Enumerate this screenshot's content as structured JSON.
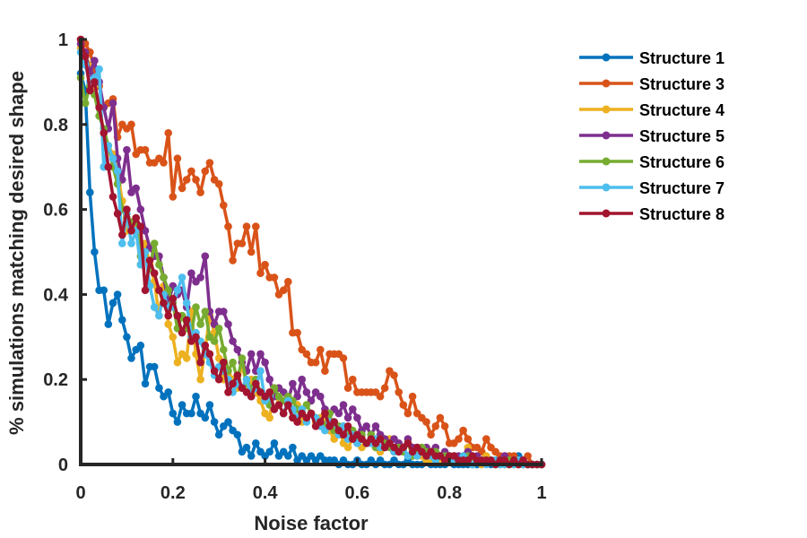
{
  "chart_data": {
    "type": "line",
    "title": "",
    "xlabel": "Noise factor",
    "ylabel": "% simulations matching desired shape",
    "xlim": [
      0,
      1
    ],
    "ylim": [
      0,
      1
    ],
    "xticks": [
      0,
      0.2,
      0.4,
      0.6,
      0.8,
      1
    ],
    "yticks": [
      0,
      0.2,
      0.4,
      0.6,
      0.8,
      1
    ],
    "xtick_labels": [
      "0",
      "0.2",
      "0.4",
      "0.6",
      "0.8",
      "1"
    ],
    "ytick_labels": [
      "0",
      "0.2",
      "0.4",
      "0.6",
      "0.8",
      "1"
    ],
    "grid": false,
    "legend_position": "top-right outside",
    "x": [
      0,
      0.01,
      0.02,
      0.03,
      0.04,
      0.05,
      0.06,
      0.07,
      0.08,
      0.09,
      0.1,
      0.11,
      0.12,
      0.13,
      0.14,
      0.15,
      0.16,
      0.17,
      0.18,
      0.19,
      0.2,
      0.21,
      0.22,
      0.23,
      0.24,
      0.25,
      0.26,
      0.27,
      0.28,
      0.29,
      0.3,
      0.31,
      0.32,
      0.33,
      0.34,
      0.35,
      0.36,
      0.37,
      0.38,
      0.39,
      0.4,
      0.41,
      0.42,
      0.43,
      0.44,
      0.45,
      0.46,
      0.47,
      0.48,
      0.49,
      0.5,
      0.51,
      0.52,
      0.53,
      0.54,
      0.55,
      0.56,
      0.57,
      0.58,
      0.59,
      0.6,
      0.61,
      0.62,
      0.63,
      0.64,
      0.65,
      0.66,
      0.67,
      0.68,
      0.69,
      0.7,
      0.71,
      0.72,
      0.73,
      0.74,
      0.75,
      0.76,
      0.77,
      0.78,
      0.79,
      0.8,
      0.81,
      0.82,
      0.83,
      0.84,
      0.85,
      0.86,
      0.87,
      0.88,
      0.89,
      0.9,
      0.91,
      0.92,
      0.93,
      0.94,
      0.95,
      0.96,
      0.97,
      0.98,
      0.99,
      1
    ],
    "series": [
      {
        "name": "Structure 1",
        "color": "#0072BD",
        "values": [
          0.92,
          0.88,
          0.64,
          0.5,
          0.41,
          0.41,
          0.33,
          0.38,
          0.4,
          0.34,
          0.3,
          0.25,
          0.27,
          0.28,
          0.19,
          0.23,
          0.23,
          0.18,
          0.16,
          0.17,
          0.12,
          0.1,
          0.14,
          0.12,
          0.12,
          0.16,
          0.12,
          0.11,
          0.14,
          0.1,
          0.07,
          0.09,
          0.1,
          0.08,
          0.07,
          0.03,
          0.04,
          0.02,
          0.05,
          0.03,
          0.02,
          0.03,
          0.05,
          0.02,
          0.03,
          0.02,
          0.04,
          0.01,
          0.02,
          0.01,
          0.02,
          0.01,
          0.02,
          0.01,
          0.01,
          0.01,
          0,
          0.01,
          0,
          0,
          0.01,
          0,
          0,
          0.01,
          0,
          0.01,
          0,
          0,
          0.01,
          0,
          0,
          0.01,
          0,
          0,
          0,
          0.01,
          0,
          0,
          0,
          0,
          0.01,
          0,
          0,
          0,
          0,
          0,
          0,
          0,
          0.01,
          0,
          0,
          0,
          0,
          0,
          0.01,
          0.02,
          0,
          0,
          0,
          0,
          0
        ]
      },
      {
        "name": "Structure 3",
        "color": "#D95319",
        "values": [
          1,
          0.99,
          0.97,
          0.93,
          0.89,
          0.84,
          0.85,
          0.86,
          0.77,
          0.8,
          0.79,
          0.8,
          0.73,
          0.74,
          0.74,
          0.71,
          0.71,
          0.72,
          0.71,
          0.78,
          0.63,
          0.72,
          0.65,
          0.67,
          0.69,
          0.67,
          0.64,
          0.69,
          0.71,
          0.67,
          0.66,
          0.61,
          0.56,
          0.48,
          0.52,
          0.52,
          0.56,
          0.5,
          0.56,
          0.45,
          0.47,
          0.44,
          0.44,
          0.4,
          0.41,
          0.43,
          0.31,
          0.31,
          0.27,
          0.26,
          0.24,
          0.24,
          0.27,
          0.22,
          0.26,
          0.26,
          0.26,
          0.25,
          0.18,
          0.2,
          0.17,
          0.17,
          0.17,
          0.17,
          0.17,
          0.16,
          0.18,
          0.22,
          0.21,
          0.17,
          0.14,
          0.12,
          0.16,
          0.12,
          0.11,
          0.1,
          0.07,
          0.09,
          0.11,
          0.09,
          0.05,
          0.05,
          0.06,
          0.08,
          0.06,
          0.04,
          0.04,
          0.03,
          0.06,
          0.04,
          0.03,
          0.02,
          0.02,
          0.02,
          0.02,
          0.01,
          0.01,
          0.02,
          0,
          0,
          0
        ]
      },
      {
        "name": "Structure 4",
        "color": "#EDB120",
        "values": [
          0.98,
          0.96,
          0.94,
          0.89,
          0.85,
          0.78,
          0.75,
          0.73,
          0.69,
          0.62,
          0.55,
          0.56,
          0.55,
          0.47,
          0.52,
          0.47,
          0.43,
          0.35,
          0.42,
          0.33,
          0.3,
          0.24,
          0.26,
          0.25,
          0.36,
          0.26,
          0.2,
          0.27,
          0.35,
          0.31,
          0.25,
          0.2,
          0.21,
          0.2,
          0.18,
          0.24,
          0.18,
          0.2,
          0.17,
          0.15,
          0.12,
          0.11,
          0.18,
          0.14,
          0.12,
          0.15,
          0.11,
          0.14,
          0.1,
          0.11,
          0.12,
          0.1,
          0.11,
          0.1,
          0.08,
          0.06,
          0.09,
          0.05,
          0.04,
          0.06,
          0.05,
          0.04,
          0.05,
          0.06,
          0.04,
          0.03,
          0.04,
          0.06,
          0.03,
          0.05,
          0.04,
          0.02,
          0.02,
          0.03,
          0.02,
          0.01,
          0.01,
          0.02,
          0.01,
          0.02,
          0.01,
          0.01,
          0.01,
          0.02,
          0.04,
          0.01,
          0.01,
          0,
          0.02,
          0.01,
          0.01,
          0.01,
          0,
          0,
          0,
          0.01,
          0.01,
          0,
          0,
          0,
          0
        ]
      },
      {
        "name": "Structure 5",
        "color": "#7E2F8E",
        "values": [
          0.99,
          0.97,
          0.92,
          0.95,
          0.9,
          0.84,
          0.79,
          0.85,
          0.72,
          0.67,
          0.74,
          0.64,
          0.65,
          0.6,
          0.55,
          0.51,
          0.49,
          0.49,
          0.44,
          0.38,
          0.42,
          0.4,
          0.41,
          0.37,
          0.45,
          0.43,
          0.44,
          0.49,
          0.36,
          0.33,
          0.36,
          0.36,
          0.33,
          0.29,
          0.27,
          0.24,
          0.22,
          0.26,
          0.22,
          0.26,
          0.24,
          0.2,
          0.16,
          0.18,
          0.17,
          0.15,
          0.19,
          0.16,
          0.2,
          0.17,
          0.15,
          0.17,
          0.16,
          0.13,
          0.12,
          0.13,
          0.12,
          0.14,
          0.11,
          0.13,
          0.11,
          0.08,
          0.09,
          0.07,
          0.09,
          0.07,
          0.06,
          0.05,
          0.06,
          0.05,
          0.04,
          0.06,
          0.04,
          0.04,
          0.03,
          0.04,
          0.03,
          0.04,
          0.02,
          0.03,
          0.02,
          0.02,
          0.02,
          0.01,
          0.03,
          0.02,
          0.02,
          0.01,
          0.01,
          0.01,
          0.01,
          0.01,
          0.02,
          0.01,
          0.01,
          0,
          0.01,
          0,
          0,
          0,
          0
        ]
      },
      {
        "name": "Structure 6",
        "color": "#77AC30",
        "values": [
          0.91,
          0.85,
          0.89,
          0.87,
          0.82,
          0.79,
          0.75,
          0.7,
          0.66,
          0.6,
          0.58,
          0.57,
          0.58,
          0.49,
          0.5,
          0.46,
          0.52,
          0.47,
          0.44,
          0.41,
          0.38,
          0.32,
          0.35,
          0.32,
          0.31,
          0.37,
          0.33,
          0.36,
          0.3,
          0.29,
          0.32,
          0.27,
          0.22,
          0.24,
          0.2,
          0.25,
          0.19,
          0.18,
          0.2,
          0.17,
          0.16,
          0.14,
          0.18,
          0.16,
          0.15,
          0.16,
          0.15,
          0.13,
          0.12,
          0.14,
          0.12,
          0.11,
          0.1,
          0.09,
          0.12,
          0.08,
          0.09,
          0.09,
          0.07,
          0.08,
          0.06,
          0.07,
          0.05,
          0.07,
          0.04,
          0.06,
          0.05,
          0.04,
          0.03,
          0.04,
          0.03,
          0.05,
          0.02,
          0.03,
          0.04,
          0.03,
          0.02,
          0.03,
          0.02,
          0.02,
          0.02,
          0.01,
          0.01,
          0.01,
          0.02,
          0,
          0.01,
          0.01,
          0.01,
          0.01,
          0,
          0.01,
          0,
          0.01,
          0,
          0,
          0,
          0,
          0,
          0,
          0
        ]
      },
      {
        "name": "Structure 7",
        "color": "#4DBEEE",
        "values": [
          0.97,
          0.94,
          0.9,
          0.91,
          0.93,
          0.7,
          0.75,
          0.72,
          0.69,
          0.52,
          0.59,
          0.52,
          0.55,
          0.47,
          0.5,
          0.42,
          0.37,
          0.35,
          0.4,
          0.37,
          0.37,
          0.41,
          0.44,
          0.38,
          0.3,
          0.31,
          0.29,
          0.26,
          0.24,
          0.21,
          0.23,
          0.22,
          0.2,
          0.17,
          0.19,
          0.18,
          0.2,
          0.16,
          0.18,
          0.22,
          0.15,
          0.16,
          0.13,
          0.14,
          0.12,
          0.15,
          0.13,
          0.11,
          0.13,
          0.1,
          0.12,
          0.11,
          0.09,
          0.08,
          0.1,
          0.1,
          0.07,
          0.09,
          0.06,
          0.07,
          0.05,
          0.06,
          0.05,
          0.05,
          0.06,
          0.04,
          0.04,
          0.05,
          0.03,
          0.03,
          0.04,
          0.02,
          0.03,
          0.02,
          0.03,
          0.02,
          0.02,
          0.01,
          0.02,
          0.01,
          0.02,
          0.01,
          0.01,
          0.02,
          0.01,
          0,
          0.01,
          0.01,
          0,
          0.01,
          0.01,
          0,
          0,
          0,
          0,
          0.01,
          0,
          0,
          0,
          0,
          0
        ]
      },
      {
        "name": "Structure 8",
        "color": "#A2142F",
        "values": [
          1,
          0.96,
          0.88,
          0.9,
          0.84,
          0.78,
          0.7,
          0.63,
          0.59,
          0.54,
          0.6,
          0.55,
          0.58,
          0.56,
          0.41,
          0.48,
          0.45,
          0.41,
          0.38,
          0.35,
          0.39,
          0.35,
          0.31,
          0.34,
          0.29,
          0.3,
          0.24,
          0.28,
          0.26,
          0.22,
          0.2,
          0.24,
          0.17,
          0.19,
          0.21,
          0.18,
          0.17,
          0.16,
          0.19,
          0.17,
          0.16,
          0.17,
          0.13,
          0.14,
          0.12,
          0.14,
          0.11,
          0.1,
          0.12,
          0.11,
          0.12,
          0.09,
          0.1,
          0.12,
          0.09,
          0.1,
          0.08,
          0.07,
          0.09,
          0.06,
          0.07,
          0.06,
          0.05,
          0.06,
          0.05,
          0.06,
          0.04,
          0.05,
          0.04,
          0.03,
          0.04,
          0.05,
          0.03,
          0.04,
          0.03,
          0.02,
          0.03,
          0.02,
          0.02,
          0.01,
          0.02,
          0.02,
          0.01,
          0.01,
          0.01,
          0.02,
          0.01,
          0.01,
          0.01,
          0.01,
          0,
          0.01,
          0.01,
          0,
          0.01,
          0,
          0.01,
          0,
          0,
          0,
          0
        ]
      }
    ]
  }
}
